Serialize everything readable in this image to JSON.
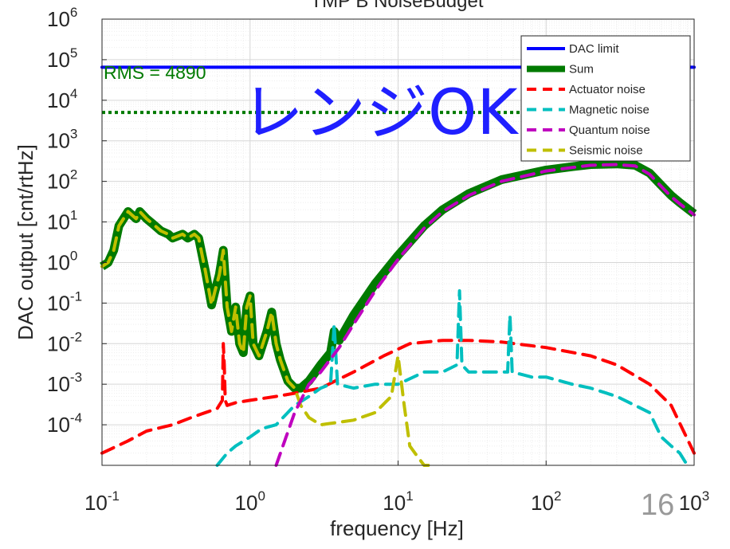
{
  "chart_data": {
    "type": "line",
    "title": "TMP B NoiseBudget",
    "xlabel": "frequency [Hz]",
    "ylabel": "DAC output [cnt/rtHz]",
    "xscale": "log",
    "yscale": "log",
    "xlim": [
      0.1,
      1000
    ],
    "ylim": [
      1e-05,
      1000000
    ],
    "grid": true,
    "minor_grid": true,
    "legend_position": "top-right",
    "x_ticks": [
      {
        "base": "10",
        "exp": "-1",
        "value": 0.1
      },
      {
        "base": "10",
        "exp": "0",
        "value": 1
      },
      {
        "base": "10",
        "exp": "1",
        "value": 10
      },
      {
        "base": "10",
        "exp": "2",
        "value": 100
      },
      {
        "base": "10",
        "exp": "3",
        "value": 1000
      }
    ],
    "y_ticks": [
      {
        "base": "10",
        "exp": "6",
        "value": 1000000
      },
      {
        "base": "10",
        "exp": "5",
        "value": 100000
      },
      {
        "base": "10",
        "exp": "4",
        "value": 10000
      },
      {
        "base": "10",
        "exp": "3",
        "value": 1000
      },
      {
        "base": "10",
        "exp": "2",
        "value": 100
      },
      {
        "base": "10",
        "exp": "1",
        "value": 10
      },
      {
        "base": "10",
        "exp": "0",
        "value": 1
      },
      {
        "base": "10",
        "exp": "-1",
        "value": 0.1
      },
      {
        "base": "10",
        "exp": "-2",
        "value": 0.01
      },
      {
        "base": "10",
        "exp": "-3",
        "value": 0.001
      },
      {
        "base": "10",
        "exp": "-4",
        "value": 0.0001
      }
    ],
    "annotations": {
      "rms_text": "RMS = 4890",
      "overlay_text": "レンジOK",
      "slide_number": "16"
    },
    "rms_line": {
      "y": 5000,
      "x_range": [
        0.1,
        1000
      ],
      "color": "#007a00"
    },
    "series": [
      {
        "name": "DAC limit",
        "color": "#0000ff",
        "style": "solid",
        "width": 4,
        "x": [
          0.1,
          1000
        ],
        "y": [
          65000,
          65000
        ]
      },
      {
        "name": "Sum",
        "color": "#007a00",
        "style": "solid",
        "width": 11,
        "x": [
          0.1,
          0.11,
          0.12,
          0.13,
          0.15,
          0.17,
          0.18,
          0.2,
          0.22,
          0.25,
          0.28,
          0.3,
          0.35,
          0.38,
          0.42,
          0.45,
          0.5,
          0.55,
          0.58,
          0.62,
          0.66,
          0.7,
          0.75,
          0.8,
          0.85,
          0.9,
          0.95,
          1.0,
          1.05,
          1.15,
          1.3,
          1.4,
          1.5,
          1.6,
          1.8,
          2.0,
          2.2,
          2.5,
          3.0,
          3.5,
          3.7,
          4,
          5,
          7,
          10,
          15,
          20,
          30,
          50,
          100,
          150,
          200,
          300,
          400,
          500,
          600,
          700,
          800,
          1000
        ],
        "y": [
          0.8,
          1.0,
          2.0,
          8,
          18,
          12,
          18,
          12,
          9,
          6,
          5,
          4,
          5,
          4,
          5,
          4,
          0.6,
          0.09,
          0.2,
          0.5,
          2.0,
          0.08,
          0.02,
          0.08,
          0.01,
          0.006,
          0.08,
          0.15,
          0.01,
          0.005,
          0.02,
          0.06,
          0.01,
          0.004,
          0.0012,
          0.0008,
          0.0008,
          0.0012,
          0.003,
          0.006,
          0.02,
          0.012,
          0.05,
          0.3,
          1.5,
          8,
          20,
          50,
          110,
          190,
          230,
          260,
          270,
          250,
          160,
          80,
          45,
          30,
          16
        ]
      },
      {
        "name": "Actuator noise",
        "color": "#ff0000",
        "style": "dashed",
        "width": 4,
        "x": [
          0.1,
          0.15,
          0.2,
          0.3,
          0.4,
          0.5,
          0.6,
          0.65,
          0.66,
          0.67,
          0.68,
          0.7,
          0.8,
          1.0,
          1.5,
          2.0,
          3.0,
          5,
          8,
          12,
          20,
          30,
          50,
          100,
          200,
          300,
          500,
          700,
          1000
        ],
        "y": [
          2e-05,
          4e-05,
          7e-05,
          0.0001,
          0.00015,
          0.0002,
          0.00025,
          0.0004,
          0.01,
          0.003,
          0.0004,
          0.0003,
          0.00035,
          0.0004,
          0.0005,
          0.0006,
          0.0008,
          0.002,
          0.005,
          0.01,
          0.012,
          0.012,
          0.011,
          0.008,
          0.005,
          0.003,
          0.001,
          0.0003,
          2e-05
        ]
      },
      {
        "name": "Magnetic noise",
        "color": "#00bfbf",
        "style": "dashed",
        "width": 4,
        "x": [
          0.6,
          0.7,
          0.8,
          1.0,
          1.2,
          1.5,
          2.0,
          2.5,
          3.0,
          3.5,
          3.7,
          3.9,
          5,
          7,
          10,
          15,
          20,
          25,
          26,
          27,
          30,
          40,
          55,
          57,
          59,
          80,
          100,
          150,
          200,
          300,
          500,
          600,
          700,
          800,
          900
        ],
        "y": [
          1e-05,
          2e-05,
          3e-05,
          5e-05,
          8e-05,
          0.0001,
          0.0003,
          0.0005,
          0.0008,
          0.001,
          0.03,
          0.001,
          0.0008,
          0.001,
          0.001,
          0.002,
          0.002,
          0.003,
          0.2,
          0.003,
          0.002,
          0.002,
          0.002,
          0.05,
          0.002,
          0.0015,
          0.0015,
          0.001,
          0.0008,
          0.0005,
          0.0002,
          5e-05,
          3e-05,
          2e-05,
          1e-05
        ]
      },
      {
        "name": "Quantum noise",
        "color": "#bf00bf",
        "style": "dashed",
        "width": 4,
        "x": [
          1.5,
          2.0,
          2.5,
          3.0,
          4,
          5,
          7,
          10,
          15,
          20,
          30,
          50,
          100,
          150,
          200,
          300,
          400,
          500,
          600,
          700,
          800,
          1000
        ],
        "y": [
          1e-05,
          0.0002,
          0.001,
          0.002,
          0.008,
          0.03,
          0.2,
          1.2,
          7,
          18,
          45,
          100,
          180,
          220,
          250,
          260,
          240,
          150,
          75,
          42,
          28,
          15
        ]
      },
      {
        "name": "Seismic noise",
        "color": "#bfbf00",
        "style": "dashed",
        "width": 4,
        "x": [
          0.1,
          0.11,
          0.12,
          0.13,
          0.15,
          0.17,
          0.18,
          0.2,
          0.22,
          0.25,
          0.28,
          0.3,
          0.35,
          0.38,
          0.42,
          0.45,
          0.5,
          0.55,
          0.58,
          0.62,
          0.66,
          0.7,
          0.75,
          0.8,
          0.85,
          0.9,
          0.95,
          1.0,
          1.05,
          1.15,
          1.3,
          1.4,
          1.5,
          1.6,
          1.8,
          2.0,
          2.2,
          2.5,
          3.0,
          5,
          7,
          9,
          10,
          11,
          12,
          13,
          15,
          16
        ],
        "y": [
          0.8,
          1.0,
          2.0,
          8,
          18,
          12,
          18,
          12,
          9,
          6,
          5,
          4,
          5,
          4,
          5,
          4,
          0.6,
          0.09,
          0.2,
          0.5,
          2.0,
          0.08,
          0.02,
          0.08,
          0.01,
          0.006,
          0.08,
          0.15,
          0.01,
          0.005,
          0.02,
          0.06,
          0.01,
          0.004,
          0.0012,
          0.0008,
          0.0003,
          0.00015,
          0.0001,
          0.00013,
          0.0002,
          0.0005,
          0.005,
          0.0003,
          3e-05,
          2e-05,
          1e-05,
          1e-05
        ]
      }
    ]
  }
}
